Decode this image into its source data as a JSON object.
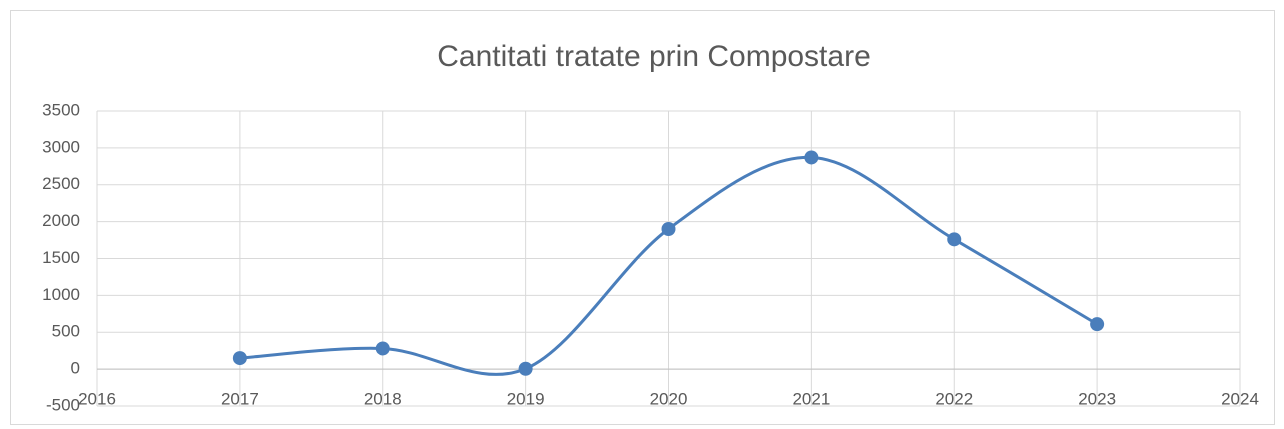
{
  "chart_data": {
    "type": "scatter-smooth",
    "title": "Cantitati tratate prin Compostare",
    "series": [
      {
        "name": "Compostare",
        "color": "#4a7ebb",
        "x": [
          2017,
          2018,
          2019,
          2020,
          2021,
          2022,
          2023
        ],
        "values": [
          150,
          280,
          5,
          1900,
          2870,
          1760,
          610
        ]
      }
    ],
    "xlim": [
      2016,
      2024
    ],
    "xticks": [
      2016,
      2017,
      2018,
      2019,
      2020,
      2021,
      2022,
      2023,
      2024
    ],
    "ylim": [
      -500,
      3500
    ],
    "yticks": [
      -500,
      0,
      500,
      1000,
      1500,
      2000,
      2500,
      3000,
      3500
    ],
    "grid": true
  }
}
